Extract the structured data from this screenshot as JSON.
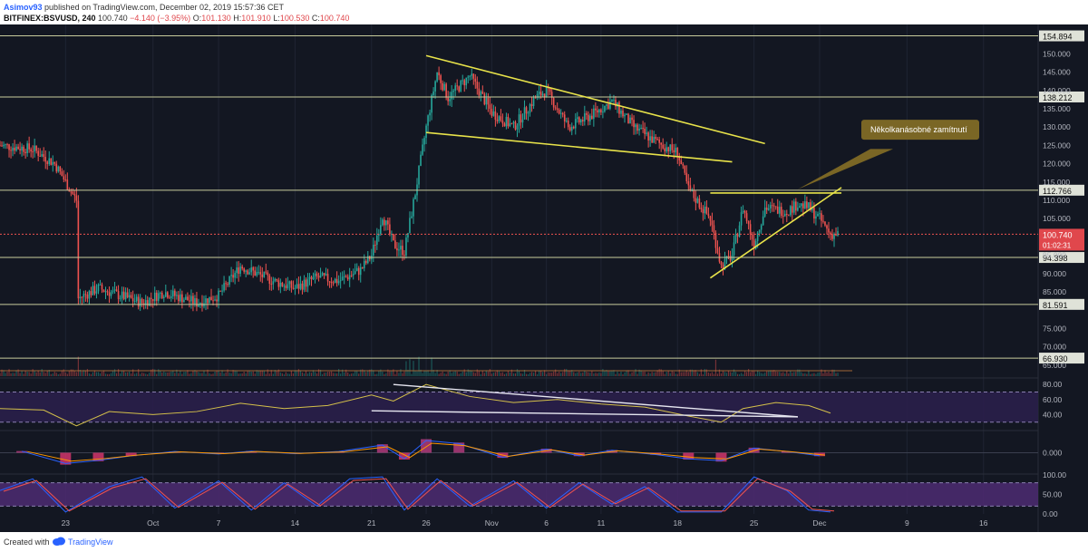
{
  "header": {
    "username": "Asimov93",
    "published": "published on TradingView.com, December 02, 2019 15:57:36 CET",
    "symbol": "BITFINEX:BSVUSD, 240",
    "price": "100.740",
    "change": "−4.140 (−3.95%)",
    "open_label": "O:",
    "open": "101.130",
    "high_label": "H:",
    "high": "101.910",
    "low_label": "L:",
    "low": "100.530",
    "close_label": "C:",
    "close": "100.740"
  },
  "footer": {
    "created_with": "Created with",
    "brand": "TradingView"
  },
  "colors": {
    "background": "#131722",
    "up": "#26a69a",
    "down": "#ef5350",
    "trendline": "#e8e34a",
    "level": "#c8cc9c",
    "rsi": "#d4c04a",
    "rsi_band": "#2a1f4a",
    "stoch_band": "#4a2a6e",
    "annotation_bg": "#7a6625",
    "marker_red": "#e0474c"
  },
  "icons": {
    "logo": "tradingview-cloud-icon"
  },
  "chart_data": [
    {
      "type": "candlestick",
      "name": "price",
      "ylim": [
        62,
        158
      ],
      "y_ticks": [
        "150.000",
        "145.000",
        "140.000",
        "135.000",
        "130.000",
        "125.000",
        "120.000",
        "115.000",
        "110.000",
        "105.000",
        "95.000",
        "90.000",
        "85.000",
        "75.000",
        "70.000",
        "65.000"
      ],
      "x_ticks": [
        "23",
        "Oct",
        "7",
        "14",
        "21",
        "26",
        "Nov",
        "6",
        "11",
        "18",
        "25",
        "Dec",
        "9",
        "16"
      ],
      "x_tick_dates": [
        "2019-09-23",
        "2019-10-01",
        "2019-10-07",
        "2019-10-14",
        "2019-10-21",
        "2019-10-26",
        "2019-11-01",
        "2019-11-06",
        "2019-11-11",
        "2019-11-18",
        "2019-11-25",
        "2019-12-01",
        "2019-12-09",
        "2019-12-16"
      ],
      "x_range": [
        "2019-09-17",
        "2019-12-21"
      ],
      "horizontal_levels": [
        {
          "label": "154.894",
          "value": 154.894
        },
        {
          "label": "138.212",
          "value": 138.212
        },
        {
          "label": "112.766",
          "value": 112.766
        },
        {
          "label": "94.398",
          "value": 94.398
        },
        {
          "label": "81.591",
          "value": 81.591
        },
        {
          "label": "66.930",
          "value": 66.93
        }
      ],
      "last_price": {
        "label": "100.740",
        "value": 100.74,
        "countdown": "01:02:31"
      },
      "close_path": [
        [
          "2019-09-17",
          125
        ],
        [
          "2019-09-20",
          124
        ],
        [
          "2019-09-22",
          120
        ],
        [
          "2019-09-24",
          110
        ],
        [
          "2019-09-24",
          83
        ],
        [
          "2019-09-26",
          86
        ],
        [
          "2019-09-30",
          82
        ],
        [
          "2019-10-02",
          85
        ],
        [
          "2019-10-05",
          82
        ],
        [
          "2019-10-07",
          84
        ],
        [
          "2019-10-09",
          92
        ],
        [
          "2019-10-12",
          88
        ],
        [
          "2019-10-14",
          86
        ],
        [
          "2019-10-16",
          89
        ],
        [
          "2019-10-18",
          88
        ],
        [
          "2019-10-20",
          91
        ],
        [
          "2019-10-21",
          95
        ],
        [
          "2019-10-22",
          106
        ],
        [
          "2019-10-23",
          98
        ],
        [
          "2019-10-24",
          96
        ],
        [
          "2019-10-25",
          112
        ],
        [
          "2019-10-26",
          130
        ],
        [
          "2019-10-27",
          145
        ],
        [
          "2019-10-28",
          138
        ],
        [
          "2019-10-30",
          144
        ],
        [
          "2019-11-01",
          134
        ],
        [
          "2019-11-03",
          130
        ],
        [
          "2019-11-05",
          138
        ],
        [
          "2019-11-06",
          140
        ],
        [
          "2019-11-08",
          130
        ],
        [
          "2019-11-10",
          133
        ],
        [
          "2019-11-12",
          137
        ],
        [
          "2019-11-14",
          130
        ],
        [
          "2019-11-16",
          126
        ],
        [
          "2019-11-18",
          123
        ],
        [
          "2019-11-19",
          113
        ],
        [
          "2019-11-21",
          105
        ],
        [
          "2019-11-22",
          92
        ],
        [
          "2019-11-23",
          95
        ],
        [
          "2019-11-24",
          108
        ],
        [
          "2019-11-25",
          98
        ],
        [
          "2019-11-26",
          108
        ],
        [
          "2019-11-28",
          107
        ],
        [
          "2019-11-29",
          109
        ],
        [
          "2019-11-30",
          108
        ],
        [
          "2019-12-01",
          105
        ],
        [
          "2019-12-02",
          100.74
        ]
      ],
      "trendlines": [
        {
          "from": [
            "2019-10-26",
            149.5
          ],
          "to": [
            "2019-11-26",
            125.5
          ]
        },
        {
          "from": [
            "2019-10-26",
            128.5
          ],
          "to": [
            "2019-11-23",
            120.5
          ]
        },
        {
          "from": [
            "2019-11-21",
            88.8
          ],
          "to": [
            "2019-12-03",
            113.5
          ]
        },
        {
          "from": [
            "2019-11-21",
            112.0
          ],
          "to": [
            "2019-12-03",
            112.0
          ]
        }
      ],
      "annotation": {
        "text": "Několkanásobné zamítnutí",
        "points_to": [
          "2019-11-29",
          113
        ]
      }
    },
    {
      "type": "line",
      "name": "RSI",
      "y_ticks": [
        "80.00",
        "60.00",
        "40.00"
      ],
      "levels": [
        70,
        30
      ],
      "ylim": [
        20,
        85
      ],
      "values": [
        [
          "2019-09-17",
          48
        ],
        [
          "2019-09-21",
          46
        ],
        [
          "2019-09-24",
          25
        ],
        [
          "2019-09-27",
          44
        ],
        [
          "2019-10-01",
          40
        ],
        [
          "2019-10-05",
          44
        ],
        [
          "2019-10-09",
          55
        ],
        [
          "2019-10-13",
          48
        ],
        [
          "2019-10-17",
          52
        ],
        [
          "2019-10-21",
          66
        ],
        [
          "2019-10-23",
          58
        ],
        [
          "2019-10-26",
          80
        ],
        [
          "2019-10-30",
          64
        ],
        [
          "2019-11-03",
          56
        ],
        [
          "2019-11-07",
          60
        ],
        [
          "2019-11-11",
          54
        ],
        [
          "2019-11-15",
          50
        ],
        [
          "2019-11-19",
          38
        ],
        [
          "2019-11-22",
          30
        ],
        [
          "2019-11-24",
          48
        ],
        [
          "2019-11-27",
          56
        ],
        [
          "2019-11-30",
          52
        ],
        [
          "2019-12-02",
          42
        ]
      ],
      "trendlines": [
        {
          "from": [
            "2019-10-23",
            80
          ],
          "to": [
            "2019-11-29",
            37
          ]
        },
        {
          "from": [
            "2019-10-21",
            45
          ],
          "to": [
            "2019-11-29",
            37
          ]
        }
      ]
    },
    {
      "type": "histogram",
      "name": "MACD",
      "y_ticks": [
        "0.000"
      ],
      "ylim": [
        -6,
        6
      ],
      "histogram": [
        [
          "2019-09-19",
          0.5
        ],
        [
          "2019-09-23",
          -3.5
        ],
        [
          "2019-09-26",
          -2.5
        ],
        [
          "2019-09-29",
          -1
        ],
        [
          "2019-10-03",
          0.4
        ],
        [
          "2019-10-07",
          -0.4
        ],
        [
          "2019-10-10",
          0.5
        ],
        [
          "2019-10-14",
          -0.3
        ],
        [
          "2019-10-18",
          0.4
        ],
        [
          "2019-10-22",
          2.5
        ],
        [
          "2019-10-24",
          -2
        ],
        [
          "2019-10-26",
          4
        ],
        [
          "2019-10-29",
          3
        ],
        [
          "2019-11-02",
          -1.5
        ],
        [
          "2019-11-06",
          1.2
        ],
        [
          "2019-11-09",
          -1
        ],
        [
          "2019-11-12",
          0.8
        ],
        [
          "2019-11-16",
          -0.6
        ],
        [
          "2019-11-19",
          -2
        ],
        [
          "2019-11-22",
          -2.6
        ],
        [
          "2019-11-25",
          1.5
        ],
        [
          "2019-11-28",
          0.4
        ],
        [
          "2019-12-01",
          -1
        ]
      ]
    },
    {
      "type": "line",
      "name": "Stochastic RSI",
      "y_ticks": [
        "100.00",
        "50.00",
        "0.00"
      ],
      "levels": [
        80,
        20
      ],
      "ylim": [
        0,
        100
      ],
      "values": [
        [
          "2019-09-17",
          60
        ],
        [
          "2019-09-20",
          90
        ],
        [
          "2019-09-23",
          5
        ],
        [
          "2019-09-27",
          70
        ],
        [
          "2019-09-30",
          95
        ],
        [
          "2019-10-03",
          15
        ],
        [
          "2019-10-07",
          85
        ],
        [
          "2019-10-10",
          10
        ],
        [
          "2019-10-13",
          80
        ],
        [
          "2019-10-16",
          20
        ],
        [
          "2019-10-19",
          90
        ],
        [
          "2019-10-22",
          95
        ],
        [
          "2019-10-24",
          10
        ],
        [
          "2019-10-27",
          90
        ],
        [
          "2019-10-30",
          20
        ],
        [
          "2019-11-03",
          85
        ],
        [
          "2019-11-06",
          15
        ],
        [
          "2019-11-09",
          80
        ],
        [
          "2019-11-12",
          25
        ],
        [
          "2019-11-15",
          70
        ],
        [
          "2019-11-18",
          5
        ],
        [
          "2019-11-22",
          5
        ],
        [
          "2019-11-25",
          95
        ],
        [
          "2019-11-28",
          60
        ],
        [
          "2019-11-30",
          10
        ],
        [
          "2019-12-02",
          5
        ]
      ]
    }
  ]
}
